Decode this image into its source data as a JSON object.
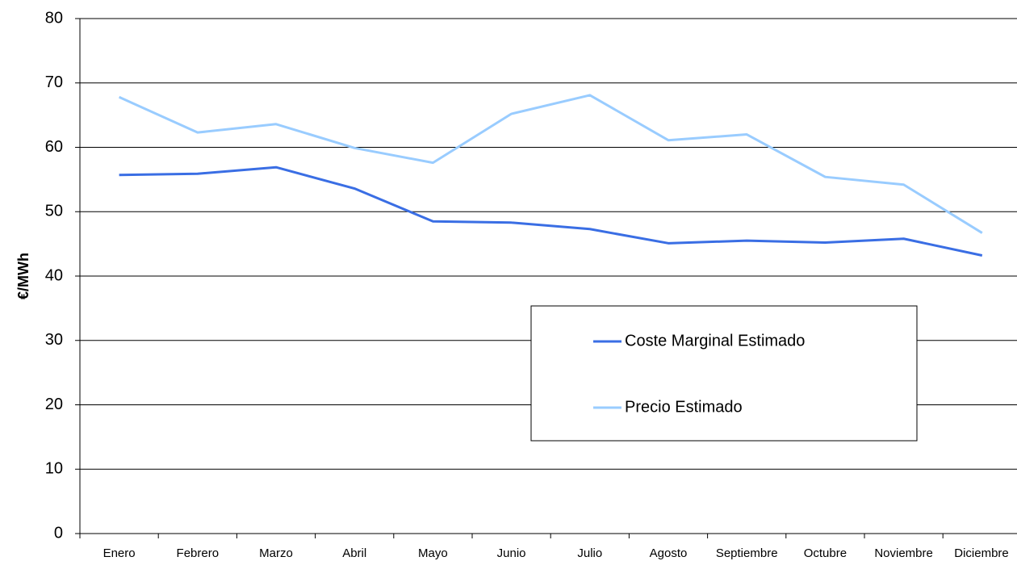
{
  "chart_data": {
    "type": "line",
    "y_label": "€/MWh",
    "categories": [
      "Enero",
      "Febrero",
      "Marzo",
      "Abril",
      "Mayo",
      "Junio",
      "Julio",
      "Agosto",
      "Septiembre",
      "Octubre",
      "Noviembre",
      "Diciembre"
    ],
    "series": [
      {
        "name": "Coste Marginal Estimado",
        "color": "#3a6ee4",
        "values": [
          55.7,
          55.9,
          56.9,
          53.6,
          48.5,
          48.3,
          47.3,
          45.1,
          45.5,
          45.2,
          45.8,
          43.2
        ]
      },
      {
        "name": "Precio Estimado",
        "color": "#99ccff",
        "values": [
          67.8,
          62.3,
          63.6,
          59.9,
          57.6,
          65.2,
          68.1,
          61.1,
          62.0,
          55.4,
          54.2,
          46.7
        ]
      }
    ],
    "ylim": [
      0,
      80
    ],
    "yticks": [
      0,
      10,
      20,
      30,
      40,
      50,
      60,
      70,
      80
    ],
    "grid": true
  }
}
